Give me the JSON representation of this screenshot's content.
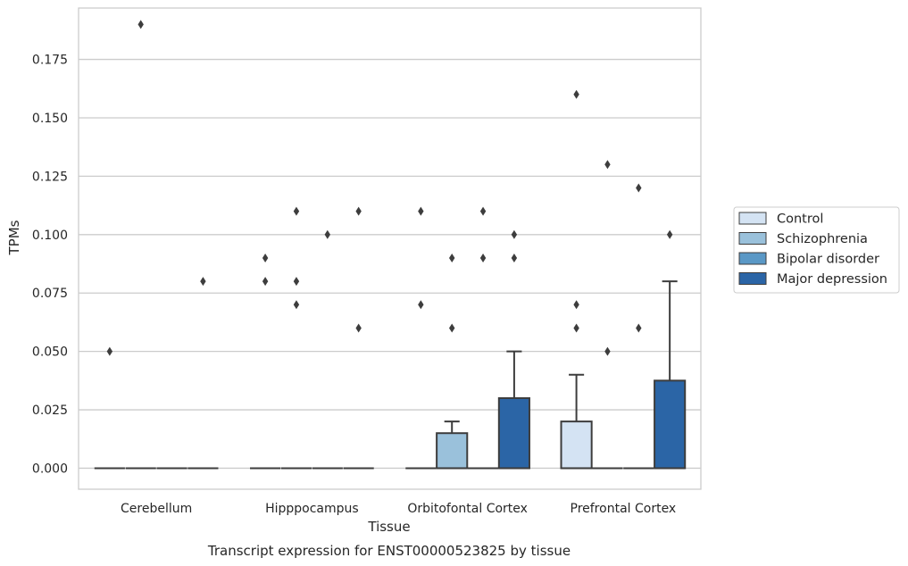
{
  "chart_data": {
    "type": "boxplot",
    "title": "",
    "caption": "Transcript expression for ENST00000523825 by tissue",
    "xlabel": "Tissue",
    "ylabel": "TPMs",
    "ylim": [
      -0.009,
      0.197
    ],
    "yticks": [
      0.0,
      0.025,
      0.05,
      0.075,
      0.1,
      0.125,
      0.15,
      0.175
    ],
    "ytick_labels": [
      "0.000",
      "0.025",
      "0.050",
      "0.075",
      "0.100",
      "0.125",
      "0.150",
      "0.175"
    ],
    "grid": "horizontal",
    "legend_position": "right",
    "categories": [
      "Cerebellum",
      "Hipppocampus",
      "Orbitofontal Cortex",
      "Prefrontal Cortex"
    ],
    "series": [
      {
        "name": "Control",
        "color": "#d4e3f3",
        "boxes": [
          {
            "q1": 0,
            "median": 0,
            "q3": 0,
            "whisker_low": 0,
            "whisker_high": 0,
            "outliers": [
              0.05
            ]
          },
          {
            "q1": 0,
            "median": 0,
            "q3": 0,
            "whisker_low": 0,
            "whisker_high": 0,
            "outliers": [
              0.09,
              0.08
            ]
          },
          {
            "q1": 0,
            "median": 0,
            "q3": 0,
            "whisker_low": 0,
            "whisker_high": 0,
            "outliers": [
              0.11,
              0.07
            ]
          },
          {
            "q1": 0,
            "median": 0,
            "q3": 0.02,
            "whisker_low": 0,
            "whisker_high": 0.04,
            "outliers": [
              0.16,
              0.07,
              0.06
            ]
          }
        ]
      },
      {
        "name": "Schizophrenia",
        "color": "#9ac1db",
        "boxes": [
          {
            "q1": 0,
            "median": 0,
            "q3": 0,
            "whisker_low": 0,
            "whisker_high": 0,
            "outliers": [
              0.19
            ]
          },
          {
            "q1": 0,
            "median": 0,
            "q3": 0,
            "whisker_low": 0,
            "whisker_high": 0,
            "outliers": [
              0.11,
              0.08,
              0.07
            ]
          },
          {
            "q1": 0,
            "median": 0,
            "q3": 0.015,
            "whisker_low": 0,
            "whisker_high": 0.02,
            "outliers": [
              0.09,
              0.06
            ]
          },
          {
            "q1": 0,
            "median": 0,
            "q3": 0,
            "whisker_low": 0,
            "whisker_high": 0,
            "outliers": [
              0.13,
              0.05
            ]
          }
        ]
      },
      {
        "name": "Bipolar disorder",
        "color": "#5a98c6",
        "boxes": [
          {
            "q1": 0,
            "median": 0,
            "q3": 0,
            "whisker_low": 0,
            "whisker_high": 0,
            "outliers": []
          },
          {
            "q1": 0,
            "median": 0,
            "q3": 0,
            "whisker_low": 0,
            "whisker_high": 0,
            "outliers": [
              0.1
            ]
          },
          {
            "q1": 0,
            "median": 0,
            "q3": 0,
            "whisker_low": 0,
            "whisker_high": 0,
            "outliers": [
              0.11,
              0.09
            ]
          },
          {
            "q1": 0,
            "median": 0,
            "q3": 0,
            "whisker_low": 0,
            "whisker_high": 0,
            "outliers": [
              0.12,
              0.06
            ]
          }
        ]
      },
      {
        "name": "Major depression",
        "color": "#2b65a6",
        "boxes": [
          {
            "q1": 0,
            "median": 0,
            "q3": 0,
            "whisker_low": 0,
            "whisker_high": 0,
            "outliers": [
              0.08
            ]
          },
          {
            "q1": 0,
            "median": 0,
            "q3": 0,
            "whisker_low": 0,
            "whisker_high": 0,
            "outliers": [
              0.11,
              0.06
            ]
          },
          {
            "q1": 0,
            "median": 0,
            "q3": 0.03,
            "whisker_low": 0,
            "whisker_high": 0.05,
            "outliers": [
              0.1,
              0.09
            ]
          },
          {
            "q1": 0,
            "median": 0,
            "q3": 0.0375,
            "whisker_low": 0,
            "whisker_high": 0.08,
            "outliers": [
              0.1
            ]
          }
        ]
      }
    ]
  }
}
